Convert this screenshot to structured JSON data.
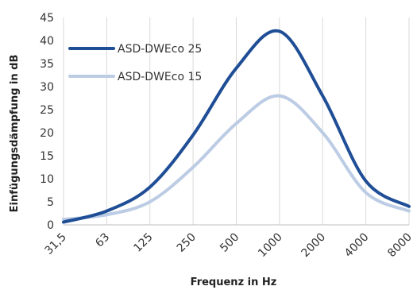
{
  "chart_data": {
    "type": "line",
    "xlabel": "Frequenz in Hz",
    "ylabel": "Einfügungsdämpfung in dB",
    "categories": [
      "31,5",
      "63",
      "125",
      "250",
      "500",
      "1000",
      "2000",
      "4000",
      "8000"
    ],
    "ylim": [
      0,
      45
    ],
    "yticks": [
      0,
      5,
      10,
      15,
      20,
      25,
      30,
      35,
      40,
      45
    ],
    "grid": "vertical",
    "legend": "top-left",
    "series": [
      {
        "name": "ASD-DWEco 25",
        "color": "#1f4e96",
        "values": [
          0.6,
          3.0,
          8.2,
          19.5,
          34.0,
          42.0,
          28.0,
          9.5,
          4.0
        ]
      },
      {
        "name": "ASD-DWEco 15",
        "color": "#bccce4",
        "values": [
          1.2,
          2.2,
          5.0,
          12.5,
          22.0,
          28.0,
          20.0,
          7.0,
          3.0
        ]
      }
    ]
  }
}
